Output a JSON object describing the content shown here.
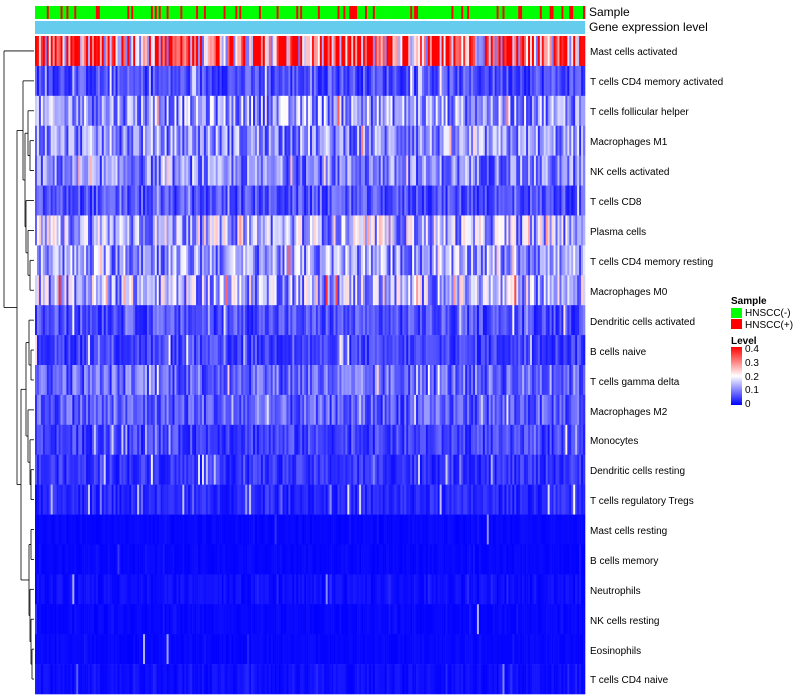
{
  "chart_data": {
    "type": "heatmap",
    "title": "",
    "annotation_tracks": [
      {
        "name": "Sample",
        "label": "Sample"
      },
      {
        "name": "Gene expression level",
        "label": "Gene expression level",
        "color": "#66ccee"
      }
    ],
    "rows": [
      "Mast cells activated",
      "T cells CD4 memory activated",
      "T cells follicular helper",
      "Macrophages M1",
      "NK cells activated",
      "T cells CD8",
      "Plasma cells",
      "T cells CD4 memory resting",
      "Macrophages M0",
      "Dendritic cells activated",
      "B cells naive",
      "T cells gamma delta",
      "Macrophages M2",
      "Monocytes",
      "Dendritic cells resting",
      "T cells regulatory  Tregs",
      "Mast cells resting",
      "B cells memory",
      "Neutrophils",
      "NK cells resting",
      "Eosinophils",
      "T cells CD4 naive"
    ],
    "row_mean_level": [
      0.32,
      0.06,
      0.12,
      0.11,
      0.1,
      0.06,
      0.14,
      0.12,
      0.14,
      0.06,
      0.05,
      0.08,
      0.07,
      0.05,
      0.04,
      0.03,
      0.01,
      0.01,
      0.02,
      0.01,
      0.01,
      0.02
    ],
    "n_samples": 280,
    "value_range": [
      0,
      0.4
    ],
    "legend": {
      "sample": {
        "title": "Sample",
        "entries": [
          {
            "label": "HNSCC(-)",
            "color": "#00ff00"
          },
          {
            "label": "HNSCC(+)",
            "color": "#ff0000"
          }
        ]
      },
      "level": {
        "title": "Level",
        "ticks": [
          "0.4",
          "0.3",
          "0.2",
          "0.1",
          "0"
        ],
        "colors": {
          "low": "#0000ff",
          "mid": "#ffffff",
          "high": "#ff0000"
        }
      }
    }
  }
}
